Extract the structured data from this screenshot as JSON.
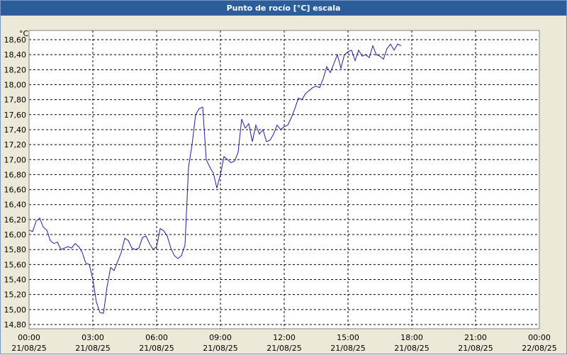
{
  "window": {
    "title": "Punto de rocío [°C] escala"
  },
  "colors": {
    "line": "#1c1cb4",
    "title_bar": "#2a5d9a",
    "background": "#ece9d8",
    "plot": "#ffffff"
  },
  "chart_data": {
    "type": "line",
    "title": "Punto de rocío [°C] escala",
    "unit_label": "°C",
    "ylim": [
      14.8,
      18.6
    ],
    "y_ticks": [
      "14,80",
      "15,00",
      "15,20",
      "15,40",
      "15,60",
      "15,80",
      "16,00",
      "16,20",
      "16,40",
      "16,60",
      "16,80",
      "17,00",
      "17,20",
      "17,40",
      "17,60",
      "17,80",
      "18,00",
      "18,20",
      "18,40",
      "18,60"
    ],
    "x_tick_times": [
      "00:00",
      "03:00",
      "06:00",
      "09:00",
      "12:00",
      "15:00",
      "18:00",
      "21:00",
      "00:00"
    ],
    "x_tick_dates": [
      "21/08/25",
      "21/08/25",
      "21/08/25",
      "21/08/25",
      "21/08/25",
      "21/08/25",
      "21/08/25",
      "21/08/25",
      "22/08/25"
    ],
    "grid": true,
    "series": [
      {
        "time": [
          "00:00",
          "00:10",
          "00:20",
          "00:30",
          "00:40",
          "00:50",
          "01:00",
          "01:10",
          "01:20",
          "01:30",
          "01:40",
          "01:50",
          "02:00",
          "02:10",
          "02:20",
          "02:30",
          "02:40",
          "02:50",
          "03:00",
          "03:10",
          "03:20",
          "03:30",
          "03:40",
          "03:50",
          "04:00",
          "04:10",
          "04:20",
          "04:30",
          "04:40",
          "04:50",
          "05:00",
          "05:10",
          "05:20",
          "05:30",
          "05:40",
          "05:50",
          "06:00",
          "06:10",
          "06:20",
          "06:30",
          "06:40",
          "06:50",
          "07:00",
          "07:10",
          "07:20",
          "07:30",
          "07:40",
          "07:50",
          "08:00",
          "08:10",
          "08:20",
          "08:30",
          "08:40",
          "08:50",
          "09:00",
          "09:10",
          "09:20",
          "09:30",
          "09:40",
          "09:50",
          "10:00",
          "10:10",
          "10:20",
          "10:30",
          "10:40",
          "10:50",
          "11:00",
          "11:10",
          "11:20",
          "11:30",
          "11:40",
          "11:50",
          "12:00",
          "12:10",
          "12:20",
          "12:30",
          "12:40",
          "12:50",
          "13:00",
          "13:10",
          "13:20",
          "13:30",
          "13:40",
          "13:50",
          "14:00",
          "14:10",
          "14:20",
          "14:30",
          "14:40",
          "14:50",
          "15:00",
          "15:10",
          "15:20",
          "15:30",
          "15:40",
          "15:50",
          "16:00",
          "16:10",
          "16:20",
          "16:30",
          "16:40",
          "16:50",
          "17:00",
          "17:10",
          "17:20",
          "17:30"
        ],
        "values": [
          16.06,
          16.04,
          16.18,
          16.22,
          16.1,
          16.06,
          15.92,
          15.88,
          15.9,
          15.8,
          15.82,
          15.84,
          15.82,
          15.88,
          15.84,
          15.76,
          15.62,
          15.6,
          15.4,
          15.1,
          14.96,
          14.95,
          15.3,
          15.56,
          15.52,
          15.64,
          15.76,
          15.95,
          15.92,
          15.82,
          15.8,
          15.82,
          15.96,
          15.98,
          15.88,
          15.8,
          15.84,
          16.08,
          16.05,
          15.98,
          15.82,
          15.72,
          15.68,
          15.72,
          15.86,
          16.9,
          17.2,
          17.6,
          17.68,
          17.7,
          17.0,
          16.9,
          16.82,
          16.62,
          16.8,
          17.04,
          17.0,
          16.96,
          16.98,
          17.1,
          17.54,
          17.42,
          17.48,
          17.24,
          17.46,
          17.34,
          17.4,
          17.24,
          17.26,
          17.34,
          17.46,
          17.4,
          17.44,
          17.46,
          17.56,
          17.68,
          17.82,
          17.8,
          17.88,
          17.92,
          17.96,
          17.98,
          17.96,
          18.08,
          18.24,
          18.16,
          18.28,
          18.4,
          18.22,
          18.4,
          18.44,
          18.46,
          18.32,
          18.46,
          18.38,
          18.4,
          18.36,
          18.52,
          18.4,
          18.38,
          18.34,
          18.48,
          18.54,
          18.46,
          18.54,
          18.52
        ]
      }
    ]
  }
}
